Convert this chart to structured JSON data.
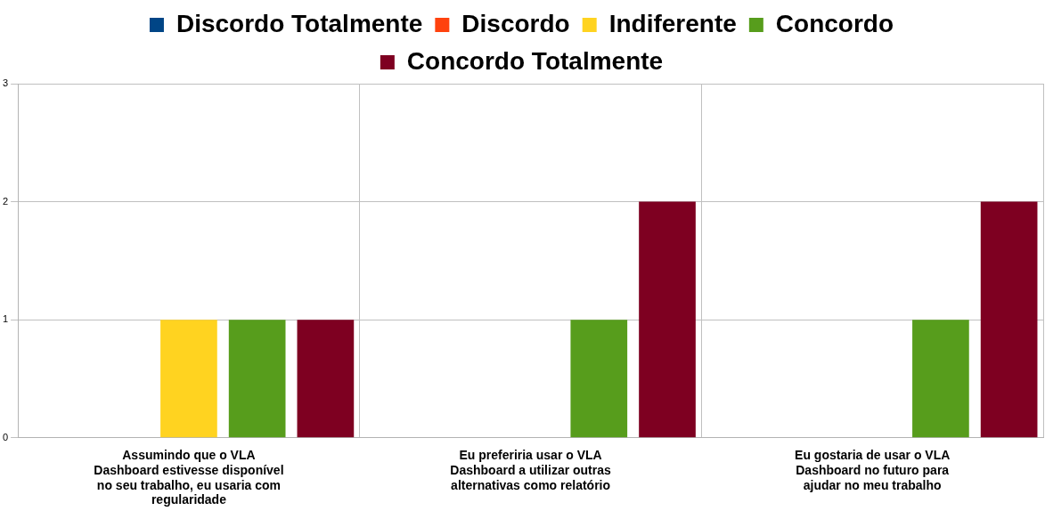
{
  "chart_data": {
    "type": "bar",
    "categories": [
      "Assumindo que o VLA Dashboard estivesse disponível no seu trabalho, eu usaria com regularidade",
      "Eu preferiria usar o VLA Dashboard a utilizar outras alternativas como relatório",
      "Eu gostaria de usar o VLA Dashboard no futuro para ajudar no meu trabalho"
    ],
    "series": [
      {
        "name": "Discordo Totalmente",
        "color": "#004586",
        "values": [
          0,
          0,
          0
        ]
      },
      {
        "name": "Discordo",
        "color": "#ff420e",
        "values": [
          0,
          0,
          0
        ]
      },
      {
        "name": "Indiferente",
        "color": "#ffd320",
        "values": [
          1,
          0,
          0
        ]
      },
      {
        "name": "Concordo",
        "color": "#579d1c",
        "values": [
          1,
          1,
          1
        ]
      },
      {
        "name": "Concordo Totalmente",
        "color": "#7e0021",
        "values": [
          1,
          2,
          2
        ]
      }
    ],
    "ylim": [
      0,
      3
    ],
    "yticks": [
      0,
      1,
      2,
      3
    ],
    "grid": true,
    "legend": "top"
  }
}
